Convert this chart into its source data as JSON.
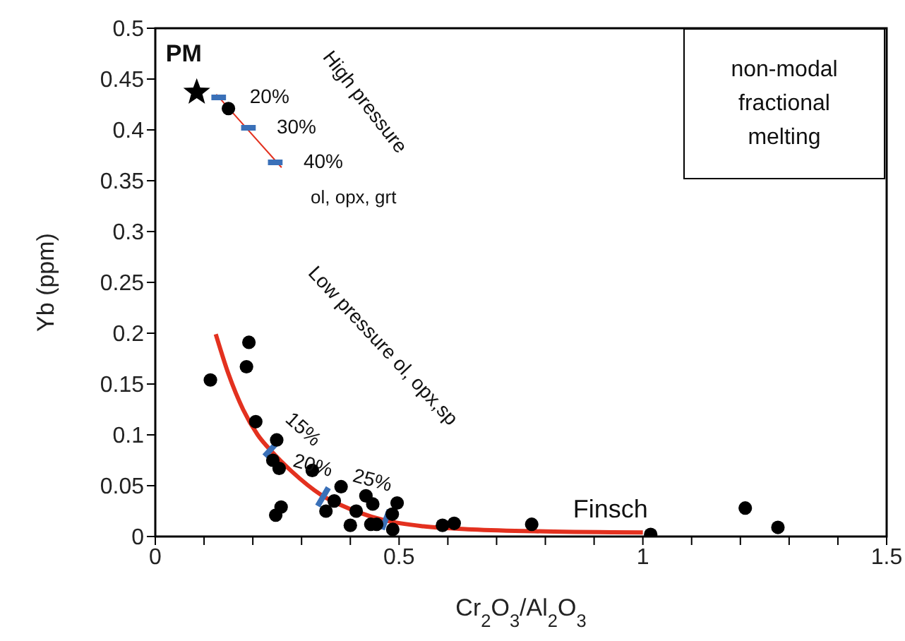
{
  "chart_data": {
    "type": "scatter",
    "xlabel": "Cr$_{2}$O$_{3}$/Al$_{2}$O$_{3}$",
    "ylabel": "Yb (ppm)",
    "xlim": [
      0,
      1.5
    ],
    "ylim": [
      0,
      0.5
    ],
    "xticks": [
      0,
      {
        "value": 0.1,
        "label": null
      },
      {
        "value": 0.2,
        "label": null
      },
      {
        "value": 0.3,
        "label": null
      },
      {
        "value": 0.4,
        "label": null
      },
      0.5,
      {
        "value": 0.6,
        "label": null
      },
      {
        "value": 0.7,
        "label": null
      },
      {
        "value": 0.8,
        "label": null
      },
      {
        "value": 0.9,
        "label": null
      },
      1,
      {
        "value": 1.1,
        "label": null
      },
      {
        "value": 1.2,
        "label": null
      },
      {
        "value": 1.3,
        "label": null
      },
      {
        "value": 1.4,
        "label": null
      },
      1.5
    ],
    "yticks": [
      0,
      0.05,
      0.1,
      0.15,
      0.2,
      0.25,
      0.3,
      0.35,
      0.4,
      0.45,
      0.5
    ],
    "series": [
      {
        "type": "line",
        "color": "#e3311f",
        "marker": "none",
        "line_style": "solid",
        "x": [
          0.124,
          0.15,
          0.18,
          0.21,
          0.24,
          0.28,
          0.34,
          0.4,
          0.47,
          0.55,
          0.65,
          0.8,
          1.0
        ],
        "values": [
          0.199,
          0.16,
          0.125,
          0.1,
          0.083,
          0.064,
          0.041,
          0.027,
          0.016,
          0.01,
          0.007,
          0.005,
          0.004
        ]
      },
      {
        "type": "line",
        "color": "#e3311f",
        "marker": "none",
        "line_style": "solid",
        "x": [
          0.125,
          0.259
        ],
        "values": [
          0.435,
          0.363
        ]
      },
      {
        "type": "line",
        "color": "#3a70b8",
        "marker": "none",
        "line_style": "solid",
        "x": [
          0.115,
          0.145,
          0.16,
          0.176,
          0.206,
          0.22,
          0.231,
          0.261,
          0.24,
          0.224,
          0.253,
          0.3,
          0.333,
          0.355,
          0.4,
          0.465,
          0.48
        ],
        "values": [
          0.432,
          0.432,
          null,
          0.402,
          0.402,
          null,
          0.368,
          0.368,
          null,
          0.079,
          0.094,
          null,
          0.03,
          0.048,
          null,
          0.007,
          0.026
        ]
      },
      {
        "type": "scatter",
        "color": "#000000",
        "marker": "circle",
        "x": [
          0.113,
          0.192,
          0.187,
          0.206,
          0.249,
          0.241,
          0.254,
          0.247,
          0.258,
          0.322,
          0.381,
          0.367,
          0.35,
          0.412,
          0.4,
          0.432,
          0.446,
          0.442,
          0.454,
          0.496,
          0.486,
          0.487,
          0.589,
          0.613,
          0.772,
          1.016,
          1.21,
          1.277,
          0.15
        ],
        "values": [
          0.154,
          0.191,
          0.167,
          0.113,
          0.095,
          0.075,
          0.067,
          0.021,
          0.029,
          0.065,
          0.049,
          0.035,
          0.025,
          0.025,
          0.011,
          0.04,
          0.032,
          0.012,
          0.012,
          0.033,
          0.022,
          0.007,
          0.011,
          0.013,
          0.012,
          0.002,
          0.028,
          0.009,
          0.421
        ]
      },
      {
        "type": "scatter",
        "color": "#000000",
        "marker": "star",
        "x": [
          0.085
        ],
        "values": [
          0.437
        ]
      }
    ],
    "annotations": [
      {
        "text": "PM",
        "x": 0.085,
        "y": 0.437
      },
      {
        "text": "20%",
        "x": 0.13,
        "y": 0.432
      },
      {
        "text": "30%",
        "x": 0.191,
        "y": 0.402
      },
      {
        "text": "40%",
        "x": 0.246,
        "y": 0.368
      },
      "High pressure",
      "ol, opx, grt",
      "Low pressure ol, opx,sp",
      {
        "text": "15%",
        "x": 0.237,
        "y": 0.087
      },
      {
        "text": "20%",
        "x": 0.343,
        "y": 0.039
      },
      {
        "text": "25%",
        "x": 0.471,
        "y": 0.016
      },
      {
        "text": "Finsch",
        "x": 1.016,
        "y": 0.002
      },
      "non-modal fractional melting"
    ]
  }
}
